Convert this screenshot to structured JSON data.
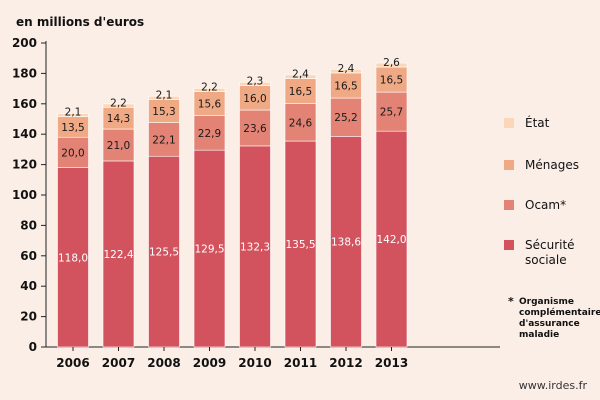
{
  "unit_label": "en millions d'euros",
  "source": "www.irdes.fr",
  "footnote": {
    "marker": "*",
    "text": "Organisme complémentaire d'assurance maladie"
  },
  "colors": {
    "securite_sociale": "#d2535e",
    "ocam": "#e28375",
    "menages": "#f0a985",
    "etat": "#fbd6b9",
    "background": "#fbeee6"
  },
  "legend": [
    {
      "label": "État",
      "color": "#fbd6b9"
    },
    {
      "label": "Ménages",
      "color": "#f0a985"
    },
    {
      "label": "Ocam*",
      "color": "#e28375"
    },
    {
      "label": "Sécurité sociale",
      "color": "#d2535e"
    }
  ],
  "chart_data": {
    "type": "bar",
    "stacked": true,
    "categories": [
      "2006",
      "2007",
      "2008",
      "2009",
      "2010",
      "2011",
      "2012",
      "2013"
    ],
    "series": [
      {
        "name": "Sécurité sociale",
        "values": [
          118.0,
          122.4,
          125.5,
          129.5,
          132.3,
          135.5,
          138.6,
          142.0
        ],
        "labels": [
          "118,0",
          "122,4",
          "125,5",
          "129,5",
          "132,3",
          "135,5",
          "138,6",
          "142,0"
        ]
      },
      {
        "name": "Ocam*",
        "values": [
          20.0,
          21.0,
          22.1,
          22.9,
          23.6,
          24.6,
          25.2,
          25.7
        ],
        "labels": [
          "20,0",
          "21,0",
          "22,1",
          "22,9",
          "23,6",
          "24,6",
          "25,2",
          "25,7"
        ]
      },
      {
        "name": "Ménages",
        "values": [
          13.5,
          14.3,
          15.3,
          15.6,
          16.0,
          16.5,
          16.5,
          16.5
        ],
        "labels": [
          "13,5",
          "14,3",
          "15,3",
          "15,6",
          "16,0",
          "16,5",
          "16,5",
          "16,5"
        ]
      },
      {
        "name": "État",
        "values": [
          2.1,
          2.2,
          2.1,
          2.2,
          2.3,
          2.4,
          2.4,
          2.6
        ],
        "labels": [
          "2,1",
          "2,2",
          "2,1",
          "2,2",
          "2,3",
          "2,4",
          "2,4",
          "2,6"
        ]
      }
    ],
    "yticks": [
      0,
      20,
      40,
      60,
      80,
      100,
      120,
      140,
      160,
      180,
      200
    ],
    "ylim": [
      0,
      200
    ],
    "ylabel": "en millions d'euros",
    "grid": false,
    "legend_position": "right"
  }
}
